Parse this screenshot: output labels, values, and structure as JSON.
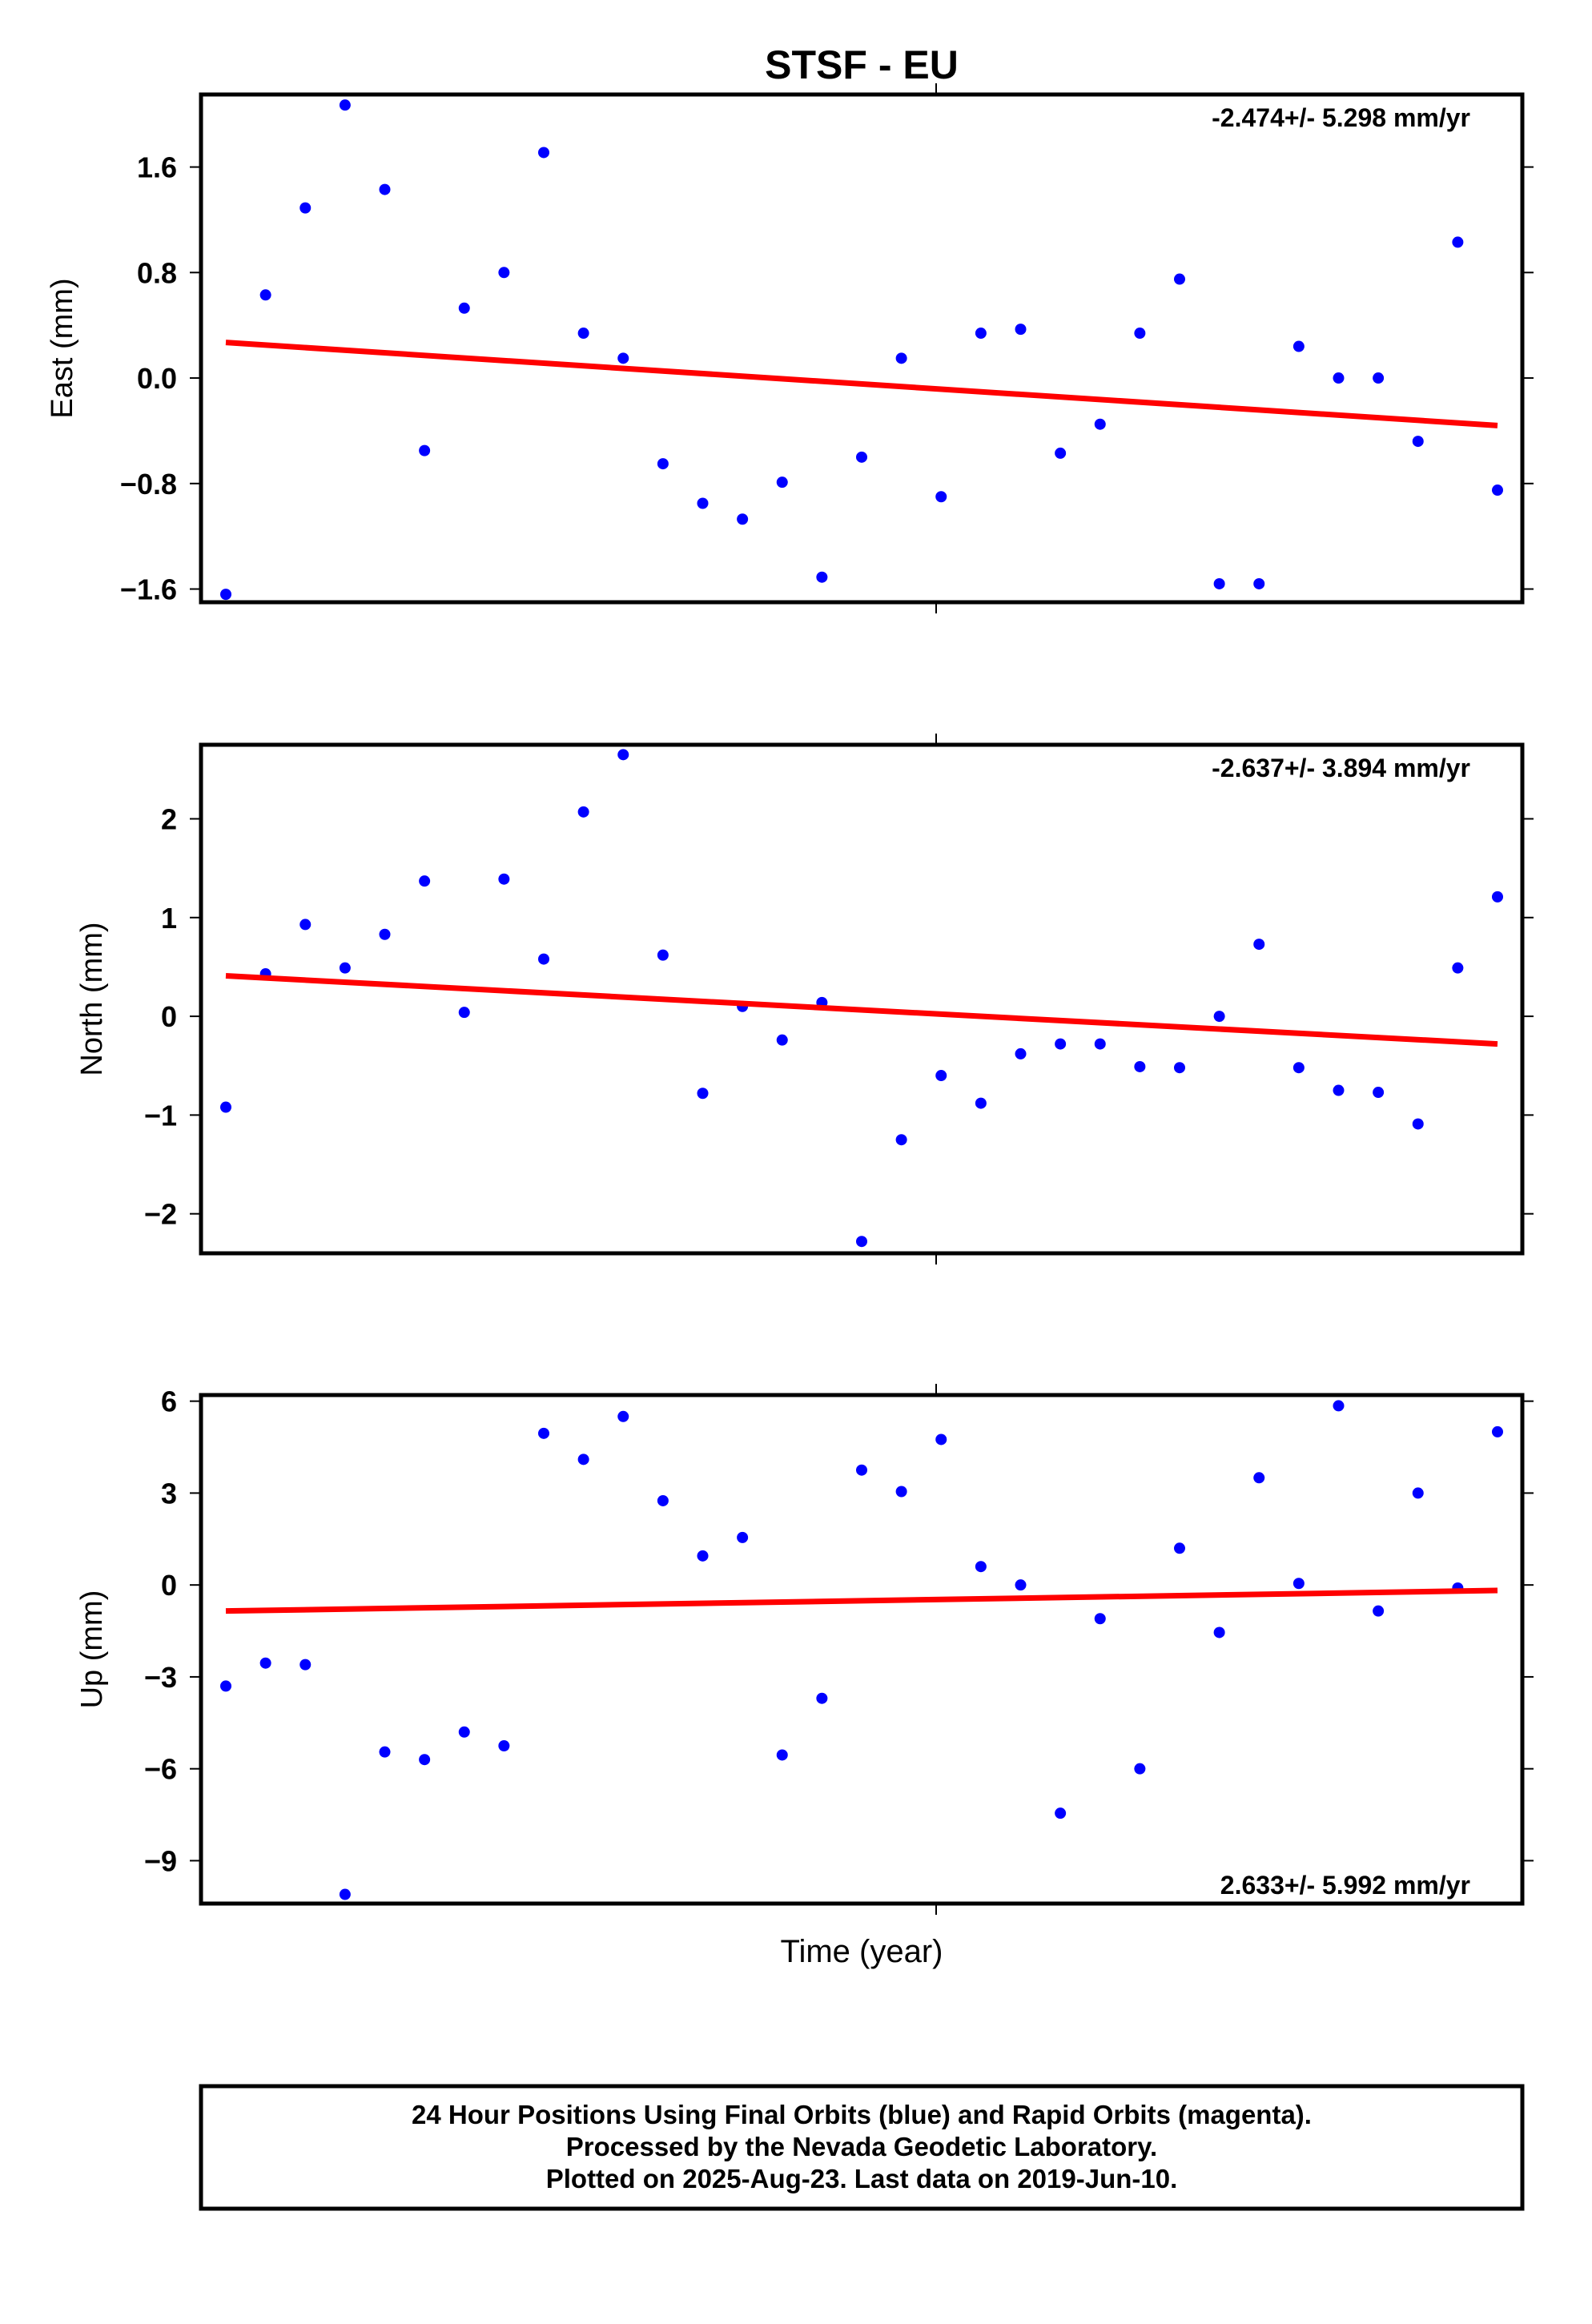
{
  "title": "STSF - EU",
  "xlabel": "Time (year)",
  "footer": {
    "line1": "24 Hour Positions Using Final Orbits (blue) and Rapid Orbits (magenta).",
    "line2": "Processed by the Nevada Geodetic Laboratory.",
    "line3": "Plotted on 2025-Aug-23. Last data on 2019-Jun-10."
  },
  "colors": {
    "final_orbits": "#0000ff",
    "trend": "#ff0000",
    "frame": "#000000"
  },
  "chart_data": [
    {
      "type": "scatter",
      "ylabel": "East (mm)",
      "ylim": [
        -1.7,
        2.15
      ],
      "yticks": [
        1.6,
        0.8,
        0.0,
        -0.8,
        -1.6
      ],
      "ytick_labels": [
        "1.6",
        "0.8",
        "0.0",
        "−0.8",
        "−1.6"
      ],
      "rate_label": "-2.474+/- 5.298 mm/yr",
      "rate_position": "top-right",
      "series": [
        {
          "values": [
            -1.64,
            0.63,
            1.29,
            2.07,
            1.43,
            -0.55,
            0.53,
            0.8,
            1.71,
            0.34,
            0.15,
            -0.65,
            -0.95,
            -1.07,
            -0.79,
            -1.51,
            -0.6,
            0.15,
            -0.9,
            0.34,
            0.37,
            -0.57,
            -0.35,
            0.34,
            0.75,
            -1.56,
            -1.56,
            0.24,
            0.0,
            0.0,
            -0.48,
            1.03,
            -0.85
          ]
        }
      ],
      "trend": [
        0.27,
        -0.36
      ]
    },
    {
      "type": "scatter",
      "ylabel": "North (mm)",
      "ylim": [
        -2.4,
        2.75
      ],
      "yticks": [
        2,
        1,
        0,
        -1,
        -2
      ],
      "ytick_labels": [
        "2",
        "1",
        "0",
        "−1",
        "−2"
      ],
      "rate_label": "-2.637+/- 3.894 mm/yr",
      "rate_position": "top-right",
      "series": [
        {
          "values": [
            -0.92,
            0.43,
            0.93,
            0.49,
            0.83,
            1.37,
            0.04,
            1.39,
            0.58,
            2.07,
            2.65,
            0.62,
            -0.78,
            0.1,
            -0.24,
            0.14,
            -2.28,
            -1.25,
            -0.6,
            -0.88,
            -0.38,
            -0.28,
            -0.28,
            -0.51,
            -0.52,
            0.0,
            0.73,
            -0.52,
            -0.75,
            -0.77,
            -1.09,
            0.49,
            1.21
          ]
        }
      ],
      "trend": [
        0.41,
        -0.28
      ]
    },
    {
      "type": "scatter",
      "ylabel": "Up (mm)",
      "ylim": [
        -10.4,
        6.2
      ],
      "yticks": [
        6,
        3,
        0,
        -3,
        -6,
        -9
      ],
      "ytick_labels": [
        "6",
        "3",
        "0",
        "−3",
        "−6",
        "−9"
      ],
      "rate_label": "2.633+/- 5.992 mm/yr",
      "rate_position": "bottom-right",
      "series": [
        {
          "values": [
            -3.3,
            -2.55,
            -2.6,
            -10.1,
            -5.45,
            -5.7,
            -4.8,
            -5.25,
            4.95,
            4.1,
            5.5,
            2.75,
            0.95,
            1.55,
            -5.55,
            -3.7,
            3.75,
            3.05,
            4.75,
            0.6,
            0.0,
            -7.45,
            -1.1,
            -6.0,
            1.2,
            -1.55,
            3.5,
            0.05,
            5.85,
            -0.85,
            3.0,
            -0.1,
            5.0
          ]
        }
      ],
      "trend": [
        -0.85,
        -0.18
      ]
    }
  ]
}
